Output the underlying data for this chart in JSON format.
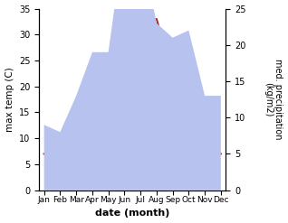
{
  "months": [
    "Jan",
    "Feb",
    "Mar",
    "Apr",
    "May",
    "Jun",
    "Jul",
    "Aug",
    "Sep",
    "Oct",
    "Nov",
    "Dec"
  ],
  "max_temp": [
    7,
    8,
    13,
    17,
    21,
    29,
    33,
    33,
    22,
    16,
    10,
    7
  ],
  "precipitation": [
    9,
    8,
    13,
    19,
    19,
    35,
    34,
    23,
    21,
    22,
    13,
    13
  ],
  "temp_color": "#9e2a2b",
  "precip_color_fill": "#b8c2ee",
  "ylabel_left": "max temp (C)",
  "ylabel_right": "med. precipitation\n(kg/m2)",
  "xlabel": "date (month)",
  "ylim_left": [
    0,
    35
  ],
  "ylim_right": [
    0,
    25
  ],
  "yticks_left": [
    0,
    5,
    10,
    15,
    20,
    25,
    30,
    35
  ],
  "yticks_right": [
    0,
    5,
    10,
    15,
    20,
    25
  ],
  "background_color": "#ffffff"
}
